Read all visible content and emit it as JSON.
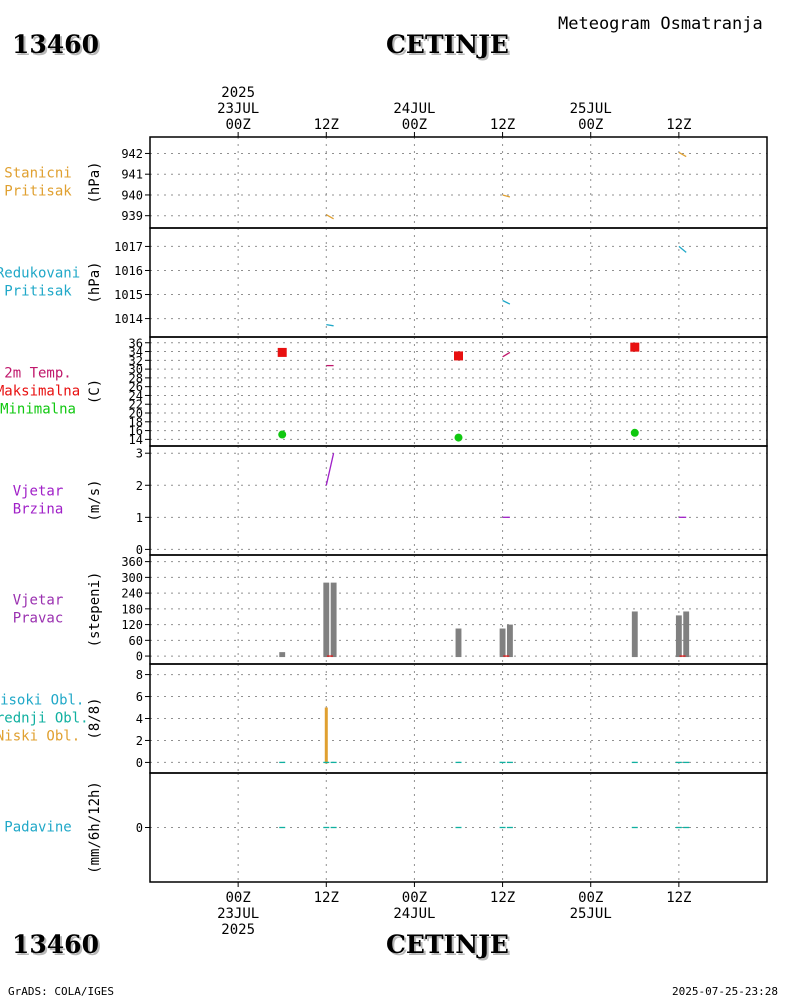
{
  "header": {
    "station_id": "13460",
    "station_name": "CETINJE",
    "subtitle": "Meteogram Osmatranja"
  },
  "footer": {
    "station_id": "13460",
    "station_name": "CETINJE",
    "credit": "GrADS: COLA/IGES",
    "timestamp": "2025-07-25-23:28"
  },
  "time_axis": {
    "hours_per_tick": 12,
    "range_hours": [
      -12,
      72
    ],
    "top_ticks": [
      {
        "hour": 0,
        "lines": [
          "2025",
          "23JUL",
          "00Z"
        ]
      },
      {
        "hour": 12,
        "lines": [
          "12Z"
        ]
      },
      {
        "hour": 24,
        "lines": [
          "24JUL",
          "00Z"
        ]
      },
      {
        "hour": 36,
        "lines": [
          "12Z"
        ]
      },
      {
        "hour": 48,
        "lines": [
          "25JUL",
          "00Z"
        ]
      },
      {
        "hour": 60,
        "lines": [
          "12Z"
        ]
      }
    ],
    "bottom_ticks": [
      {
        "hour": 0,
        "lines": [
          "00Z",
          "23JUL",
          "2025"
        ]
      },
      {
        "hour": 12,
        "lines": [
          "12Z"
        ]
      },
      {
        "hour": 24,
        "lines": [
          "00Z",
          "24JUL"
        ]
      },
      {
        "hour": 36,
        "lines": [
          "12Z"
        ]
      },
      {
        "hour": 48,
        "lines": [
          "00Z",
          "25JUL"
        ]
      },
      {
        "hour": 60,
        "lines": [
          "12Z"
        ]
      }
    ]
  },
  "colors": {
    "orange": "#e0a030",
    "cyan": "#20a8c8",
    "magenta": "#c0186c",
    "red": "#e81010",
    "green": "#10c810",
    "purple": "#a020c8",
    "violet": "#9a30b0",
    "gray": "#808080",
    "teal": "#10b0a0"
  },
  "chart_data": [
    {
      "id": "stanicni",
      "type": "line",
      "labels": [
        {
          "text": "Stanicni",
          "color": "#e0a030"
        },
        {
          "text": "Pritisak",
          "color": "#e0a030"
        }
      ],
      "unit": "(hPa)",
      "ylim": [
        938.6,
        942.6
      ],
      "yticks": [
        939,
        940,
        941,
        942
      ],
      "series": [
        {
          "name": "Stanicni Pritisak",
          "color": "#e0a030",
          "segments": [
            [
              [
                12,
                939.05
              ],
              [
                13,
                938.85
              ]
            ],
            [
              [
                36,
                940.0
              ],
              [
                37,
                939.9
              ]
            ],
            [
              [
                60,
                942.05
              ],
              [
                61,
                941.85
              ]
            ]
          ]
        }
      ]
    },
    {
      "id": "redukovani",
      "type": "line",
      "labels": [
        {
          "text": "Redukovani",
          "color": "#20a8c8"
        },
        {
          "text": "Pritisak",
          "color": "#20a8c8"
        }
      ],
      "unit": "(hPa)",
      "ylim": [
        1013.4,
        1017.6
      ],
      "yticks": [
        1014,
        1015,
        1016,
        1017
      ],
      "series": [
        {
          "name": "Redukovani Pritisak",
          "color": "#20a8c8",
          "segments": [
            [
              [
                12,
                1013.75
              ],
              [
                13,
                1013.7
              ]
            ],
            [
              [
                36,
                1014.75
              ],
              [
                37,
                1014.6
              ]
            ],
            [
              [
                60,
                1017.0
              ],
              [
                61,
                1016.75
              ]
            ]
          ]
        }
      ]
    },
    {
      "id": "temperatura",
      "type": "line",
      "labels": [
        {
          "text": "2m Temp.",
          "color": "#c0186c"
        },
        {
          "text": "Maksimalna",
          "color": "#e81010"
        },
        {
          "text": "Minimalna",
          "color": "#10c810"
        }
      ],
      "unit": "(C)",
      "ylim": [
        13.4,
        36.4
      ],
      "yticks": [
        14,
        16,
        18,
        20,
        22,
        24,
        26,
        28,
        30,
        32,
        34,
        36
      ],
      "series": [
        {
          "name": "2m Temp.",
          "color": "#c0186c",
          "segments": [
            [
              [
                12,
                30.8
              ],
              [
                13,
                30.8
              ]
            ],
            [
              [
                36,
                32.8
              ],
              [
                37,
                33.8
              ]
            ]
          ]
        },
        {
          "name": "Maksimalna",
          "color": "#e81010",
          "marker": "square",
          "points": [
            [
              6,
              33.8
            ],
            [
              30,
              33.0
            ],
            [
              54,
              35.0
            ]
          ]
        },
        {
          "name": "Minimalna",
          "color": "#10c810",
          "marker": "circle",
          "points": [
            [
              6,
              15.1
            ],
            [
              30,
              14.4
            ],
            [
              54,
              15.5
            ]
          ]
        }
      ]
    },
    {
      "id": "vjetar_brzina",
      "type": "line",
      "labels": [
        {
          "text": "Vjetar",
          "color": "#a020c8"
        },
        {
          "text": "Brzina",
          "color": "#a020c8"
        }
      ],
      "unit": "(m/s)",
      "ylim": [
        -0.05,
        3.1
      ],
      "yticks": [
        0,
        1,
        2,
        3
      ],
      "series": [
        {
          "name": "Vjetar Brzina",
          "color": "#a020c8",
          "segments": [
            [
              [
                12,
                2.0
              ],
              [
                13,
                3.0
              ]
            ],
            [
              [
                36,
                1.0
              ],
              [
                37,
                1.0
              ]
            ],
            [
              [
                60,
                1.0
              ],
              [
                61,
                1.0
              ]
            ]
          ]
        }
      ]
    },
    {
      "id": "vjetar_pravac",
      "type": "bar",
      "labels": [
        {
          "text": "Vjetar",
          "color": "#9a30b0"
        },
        {
          "text": "Pravac",
          "color": "#9a30b0"
        }
      ],
      "unit": "(stepeni)",
      "ylim": [
        -15,
        370
      ],
      "yticks": [
        0,
        60,
        120,
        180,
        240,
        300,
        360
      ],
      "bar_width_hours": 0.8,
      "bars": [
        {
          "x": 6,
          "value": 15
        },
        {
          "x": 12,
          "value": 280
        },
        {
          "x": 13,
          "value": 280
        },
        {
          "x": 30,
          "value": 105
        },
        {
          "x": 36,
          "value": 105
        },
        {
          "x": 37,
          "value": 120
        },
        {
          "x": 54,
          "value": 170
        },
        {
          "x": 60,
          "value": 155
        },
        {
          "x": 61,
          "value": 170
        }
      ],
      "baseline_marks": [
        {
          "x": 12.5
        },
        {
          "x": 36.5
        },
        {
          "x": 60.5
        }
      ]
    },
    {
      "id": "oblacnost",
      "type": "bar",
      "labels": [
        {
          "text": "Visoki Obl.",
          "color": "#20a8c8"
        },
        {
          "text": "Srednji Obl.",
          "color": "#10b0a0"
        },
        {
          "text": "Niski Obl.",
          "color": "#e0a030"
        }
      ],
      "unit": "(8/8)",
      "ylim": [
        -0.6,
        8.6
      ],
      "yticks": [
        0,
        2,
        4,
        6,
        8
      ],
      "bars": [
        {
          "x": 12,
          "value": 5,
          "color": "#e0a030"
        }
      ],
      "zero_marks": [
        6,
        12,
        13,
        30,
        36,
        37,
        54,
        60,
        61
      ]
    },
    {
      "id": "padavine",
      "type": "bar",
      "labels": [
        {
          "text": "Padavine",
          "color": "#20a8c8"
        }
      ],
      "unit": "(mm/6h/12h)",
      "ylim": [
        -5,
        5
      ],
      "yticks": [
        0
      ],
      "zero_marks": [
        6,
        12,
        13,
        30,
        36,
        37,
        54,
        60,
        61
      ]
    }
  ]
}
